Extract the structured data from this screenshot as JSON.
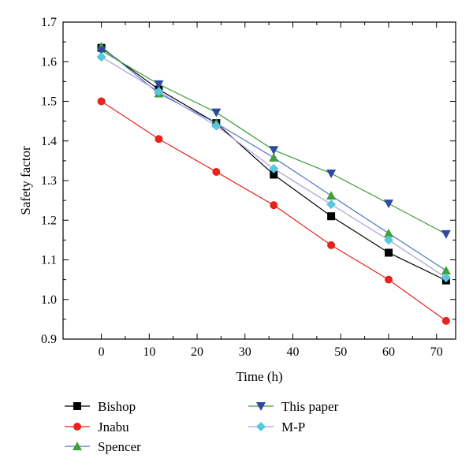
{
  "chart_data": {
    "type": "line",
    "xlabel": "Time (h)",
    "ylabel": "Safety factor",
    "xlim": [
      -8,
      74
    ],
    "ylim": [
      0.9,
      1.7
    ],
    "x_ticks": [
      "0",
      "10",
      "20",
      "30",
      "40",
      "50",
      "60",
      "70"
    ],
    "y_ticks": [
      "0.9",
      "1.0",
      "1.1",
      "1.2",
      "1.3",
      "1.4",
      "1.5",
      "1.6",
      "1.7"
    ],
    "grid": false,
    "legend_position": "bottom",
    "x": [
      0,
      12,
      24,
      36,
      48,
      60,
      72
    ],
    "series": [
      {
        "name": "Bishop",
        "color": "#000000",
        "marker": "square",
        "values": [
          1.635,
          1.53,
          1.445,
          1.315,
          1.21,
          1.118,
          1.048
        ]
      },
      {
        "name": "Jnabu",
        "color": "#e8231c",
        "marker": "circle",
        "values": [
          1.5,
          1.405,
          1.322,
          1.238,
          1.137,
          1.05,
          0.946
        ]
      },
      {
        "name": "Spencer",
        "color": "#3f9f3a",
        "marker": "triangle-up",
        "values": [
          1.638,
          1.52,
          1.445,
          1.358,
          1.262,
          1.167,
          1.073
        ]
      },
      {
        "name": "This paper",
        "color": "#2e4aa0",
        "marker": "triangle-down",
        "values": [
          1.628,
          1.543,
          1.472,
          1.377,
          1.318,
          1.242,
          1.165
        ]
      },
      {
        "name": "M-P",
        "color": "#55c8e0",
        "marker": "diamond",
        "values": [
          1.612,
          1.525,
          1.438,
          1.33,
          1.24,
          1.15,
          1.055
        ]
      }
    ]
  },
  "series_line_colors": [
    "#000000",
    "#e8231c",
    "#4b74c8",
    "#3f9f3a",
    "#a89fd9"
  ]
}
